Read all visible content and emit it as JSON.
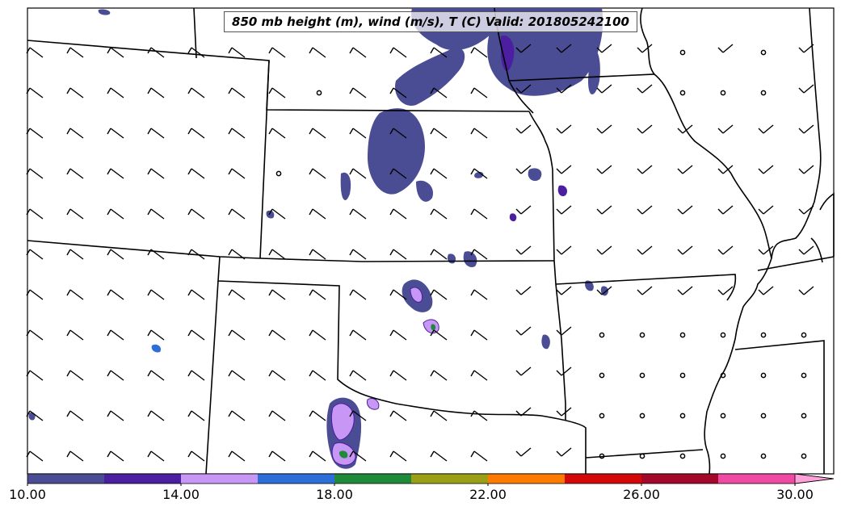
{
  "title": "850 mb height (m), wind (m/s), T (C) Valid: 201805242100",
  "colorbar": {
    "tick_labels": [
      "10.00",
      "14.00",
      "18.00",
      "22.00",
      "26.00",
      "30.00"
    ],
    "colors": [
      "#4a4c94",
      "#4b1fa0",
      "#c896f5",
      "#2e6ed8",
      "#1f8a3a",
      "#9a9f15",
      "#ff7a00",
      "#d40808",
      "#a3082a",
      "#ef49a4",
      "#ffa0d8"
    ],
    "extend": "max"
  },
  "wind_barbs": "present",
  "calm_circles": "present",
  "map_colors": {
    "borders": "#000000",
    "background": "#ffffff"
  }
}
